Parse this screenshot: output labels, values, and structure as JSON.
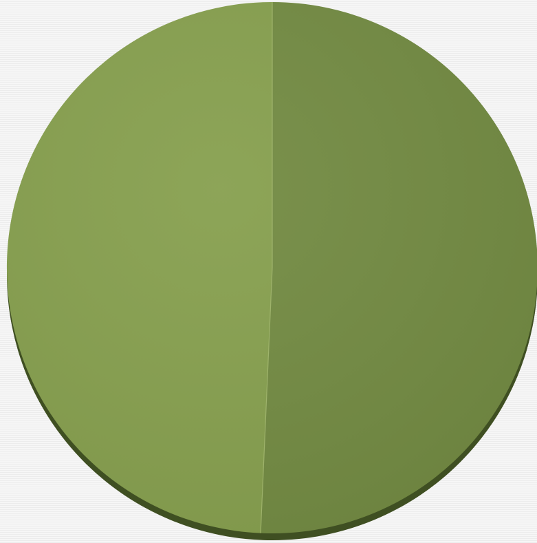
{
  "chart_data": {
    "type": "pie",
    "style": "3d",
    "legend": "none",
    "slices": [
      {
        "value": 50.7,
        "color": "#738b43"
      },
      {
        "value": 49.3,
        "color": "#87a04f"
      }
    ],
    "side_color": "#3f4f22",
    "divider_color": "#a7bb74"
  }
}
